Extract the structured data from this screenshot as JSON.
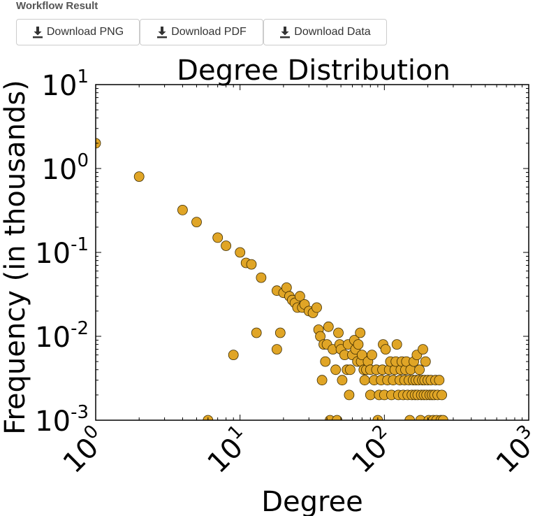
{
  "header": {
    "title": "Workflow Result"
  },
  "toolbar": {
    "download_png_label": "Download PNG",
    "download_pdf_label": "Download PDF",
    "download_data_label": "Download Data",
    "icon": "download-icon"
  },
  "chart_data": {
    "type": "scatter",
    "title": "Degree Distribution",
    "xlabel": "Degree",
    "ylabel": "Frequency (in thousands)",
    "xscale": "log",
    "yscale": "log",
    "xlim": [
      1,
      1000
    ],
    "ylim": [
      0.001,
      10
    ],
    "xticks": [
      {
        "value": 1,
        "base": "10",
        "exp": "0"
      },
      {
        "value": 10,
        "base": "10",
        "exp": "1"
      },
      {
        "value": 100,
        "base": "10",
        "exp": "2"
      },
      {
        "value": 1000,
        "base": "10",
        "exp": "3"
      }
    ],
    "yticks": [
      {
        "value": 0.001,
        "base": "10",
        "exp": "-3"
      },
      {
        "value": 0.01,
        "base": "10",
        "exp": "-2"
      },
      {
        "value": 0.1,
        "base": "10",
        "exp": "-1"
      },
      {
        "value": 1,
        "base": "10",
        "exp": "0"
      },
      {
        "value": 10,
        "base": "10",
        "exp": "1"
      }
    ],
    "marker_color": "#e0a526",
    "marker_edge": "#3a2a00",
    "grid": false,
    "points": [
      [
        1,
        2.0
      ],
      [
        2,
        0.8
      ],
      [
        4,
        0.32
      ],
      [
        5,
        0.23
      ],
      [
        6,
        0.001
      ],
      [
        7,
        0.15
      ],
      [
        8,
        0.12
      ],
      [
        9,
        0.006
      ],
      [
        10,
        0.1
      ],
      [
        11,
        0.075
      ],
      [
        12,
        0.072
      ],
      [
        13,
        0.011
      ],
      [
        14,
        0.05
      ],
      [
        18,
        0.007
      ],
      [
        18,
        0.035
      ],
      [
        19,
        0.011
      ],
      [
        20,
        0.033
      ],
      [
        21,
        0.038
      ],
      [
        22,
        0.03
      ],
      [
        23,
        0.027
      ],
      [
        24,
        0.025
      ],
      [
        25,
        0.022
      ],
      [
        26,
        0.03
      ],
      [
        27,
        0.022
      ],
      [
        28,
        0.024
      ],
      [
        30,
        0.02
      ],
      [
        32,
        0.019
      ],
      [
        34,
        0.022
      ],
      [
        35,
        0.012
      ],
      [
        36,
        0.01
      ],
      [
        37,
        0.003
      ],
      [
        38,
        0.008
      ],
      [
        39,
        0.005
      ],
      [
        40,
        0.008
      ],
      [
        41,
        0.013
      ],
      [
        42,
        0.001
      ],
      [
        44,
        0.007
      ],
      [
        46,
        0.004
      ],
      [
        47,
        0.001
      ],
      [
        48,
        0.011
      ],
      [
        49,
        0.008
      ],
      [
        50,
        0.007
      ],
      [
        51,
        0.003
      ],
      [
        53,
        0.006
      ],
      [
        55,
        0.004
      ],
      [
        56,
        0.008
      ],
      [
        57,
        0.002
      ],
      [
        58,
        0.004
      ],
      [
        60,
        0.006
      ],
      [
        62,
        0.009
      ],
      [
        63,
        0.007
      ],
      [
        65,
        0.005
      ],
      [
        66,
        0.008
      ],
      [
        68,
        0.011
      ],
      [
        69,
        0.005
      ],
      [
        70,
        0.006
      ],
      [
        72,
        0.004
      ],
      [
        73,
        0.003
      ],
      [
        75,
        0.004
      ],
      [
        77,
        0.005
      ],
      [
        80,
        0.002
      ],
      [
        80,
        0.004
      ],
      [
        82,
        0.006
      ],
      [
        85,
        0.003
      ],
      [
        88,
        0.004
      ],
      [
        90,
        0.001
      ],
      [
        92,
        0.002
      ],
      [
        95,
        0.003
      ],
      [
        97,
        0.004
      ],
      [
        98,
        0.008
      ],
      [
        100,
        0.002
      ],
      [
        102,
        0.007
      ],
      [
        105,
        0.003
      ],
      [
        108,
        0.004
      ],
      [
        110,
        0.005
      ],
      [
        112,
        0.002
      ],
      [
        115,
        0.003
      ],
      [
        118,
        0.004
      ],
      [
        120,
        0.005
      ],
      [
        122,
        0.008
      ],
      [
        125,
        0.002
      ],
      [
        128,
        0.003
      ],
      [
        130,
        0.004
      ],
      [
        132,
        0.005
      ],
      [
        135,
        0.002
      ],
      [
        138,
        0.003
      ],
      [
        140,
        0.004
      ],
      [
        142,
        0.005
      ],
      [
        145,
        0.002
      ],
      [
        148,
        0.003
      ],
      [
        150,
        0.001
      ],
      [
        152,
        0.004
      ],
      [
        155,
        0.002
      ],
      [
        158,
        0.003
      ],
      [
        160,
        0.005
      ],
      [
        163,
        0.002
      ],
      [
        165,
        0.003
      ],
      [
        168,
        0.006
      ],
      [
        170,
        0.002
      ],
      [
        173,
        0.003
      ],
      [
        175,
        0.004
      ],
      [
        178,
        0.001
      ],
      [
        180,
        0.002
      ],
      [
        183,
        0.003
      ],
      [
        185,
        0.007
      ],
      [
        188,
        0.002
      ],
      [
        190,
        0.003
      ],
      [
        193,
        0.005
      ],
      [
        196,
        0.002
      ],
      [
        200,
        0.003
      ],
      [
        203,
        0.001
      ],
      [
        206,
        0.002
      ],
      [
        210,
        0.003
      ],
      [
        214,
        0.002
      ],
      [
        218,
        0.001
      ],
      [
        222,
        0.002
      ],
      [
        226,
        0.003
      ],
      [
        230,
        0.001
      ],
      [
        234,
        0.002
      ],
      [
        240,
        0.003
      ],
      [
        246,
        0.001
      ],
      [
        250,
        0.002
      ],
      [
        255,
        0.001
      ]
    ]
  }
}
